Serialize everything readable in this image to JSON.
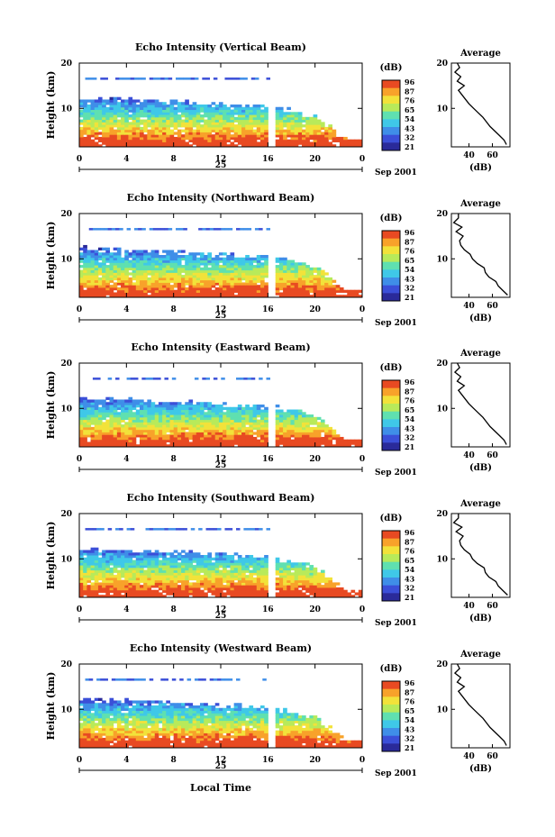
{
  "figure": {
    "date_label": "Sep 2001",
    "day_label": "25",
    "xlabel": "Local Time"
  },
  "colorbar": {
    "unit": "(dB)",
    "ticks": [
      "96",
      "87",
      "76",
      "65",
      "54",
      "43",
      "32",
      "21"
    ],
    "colors": [
      "#2a2a9a",
      "#3b4fd8",
      "#3f8ee8",
      "#3fc8e8",
      "#5fe0b0",
      "#b8ea5a",
      "#f2e23a",
      "#f8a22a",
      "#e84a22"
    ]
  },
  "chart_data": [
    {
      "type": "heatmap",
      "title": "Echo Intensity (Vertical Beam)",
      "ylabel": "Height (km)",
      "x_ticks": [
        "0",
        "4",
        "8",
        "12",
        "16",
        "20",
        "0"
      ],
      "y_ticks": [
        "20",
        "10"
      ],
      "xlim": [
        0,
        24
      ],
      "ylim": [
        1.5,
        20
      ],
      "zlim": [
        21,
        96
      ],
      "data_gap_hours": [
        16,
        16.5
      ],
      "inset": {
        "title": "Average",
        "xlabel": "(dB)",
        "x_ticks": [
          "40",
          "60"
        ],
        "y_ticks": [
          "20",
          "10"
        ],
        "xlim": [
          25,
          75
        ]
      }
    },
    {
      "type": "heatmap",
      "title": "Echo Intensity (Northward Beam)",
      "ylabel": "Height (km)",
      "x_ticks": [
        "0",
        "4",
        "8",
        "12",
        "16",
        "20",
        "0"
      ],
      "y_ticks": [
        "20",
        "10"
      ],
      "xlim": [
        0,
        24
      ],
      "ylim": [
        1.5,
        20
      ],
      "zlim": [
        21,
        96
      ],
      "data_gap_hours": [
        16,
        16.5
      ],
      "inset": {
        "title": "Average",
        "xlabel": "(dB)",
        "x_ticks": [
          "40",
          "60"
        ],
        "y_ticks": [
          "20",
          "10"
        ],
        "xlim": [
          25,
          75
        ]
      }
    },
    {
      "type": "heatmap",
      "title": "Echo Intensity (Eastward Beam)",
      "ylabel": "Height (km)",
      "x_ticks": [
        "0",
        "4",
        "8",
        "12",
        "16",
        "20",
        "0"
      ],
      "y_ticks": [
        "20",
        "10"
      ],
      "xlim": [
        0,
        24
      ],
      "ylim": [
        1.5,
        20
      ],
      "zlim": [
        21,
        96
      ],
      "data_gap_hours": [
        16,
        16.5
      ],
      "inset": {
        "title": "Average",
        "xlabel": "(dB)",
        "x_ticks": [
          "40",
          "60"
        ],
        "y_ticks": [
          "20",
          "10"
        ],
        "xlim": [
          25,
          75
        ]
      }
    },
    {
      "type": "heatmap",
      "title": "Echo Intensity (Southward Beam)",
      "ylabel": "Height (km)",
      "x_ticks": [
        "0",
        "4",
        "8",
        "12",
        "16",
        "20",
        "0"
      ],
      "y_ticks": [
        "20",
        "10"
      ],
      "xlim": [
        0,
        24
      ],
      "ylim": [
        1.5,
        20
      ],
      "zlim": [
        21,
        96
      ],
      "data_gap_hours": [
        16,
        16.5
      ],
      "inset": {
        "title": "Average",
        "xlabel": "(dB)",
        "x_ticks": [
          "40",
          "60"
        ],
        "y_ticks": [
          "20",
          "10"
        ],
        "xlim": [
          25,
          75
        ]
      }
    },
    {
      "type": "heatmap",
      "title": "Echo Intensity (Westward Beam)",
      "ylabel": "Height (km)",
      "x_ticks": [
        "0",
        "4",
        "8",
        "12",
        "16",
        "20",
        "0"
      ],
      "y_ticks": [
        "20",
        "10"
      ],
      "xlim": [
        0,
        24
      ],
      "ylim": [
        1.5,
        20
      ],
      "zlim": [
        21,
        96
      ],
      "data_gap_hours": [
        16,
        16.5
      ],
      "inset": {
        "title": "Average",
        "xlabel": "(dB)",
        "x_ticks": [
          "40",
          "60"
        ],
        "y_ticks": [
          "20",
          "10"
        ],
        "xlim": [
          25,
          75
        ]
      }
    }
  ],
  "avg_profile": {
    "heights_km": [
      2,
      3,
      4,
      5,
      6,
      7,
      8,
      9,
      10,
      11,
      12,
      13,
      14,
      15,
      16,
      17,
      18,
      19,
      20
    ],
    "avg_db": [
      72,
      70,
      66,
      62,
      58,
      55,
      52,
      48,
      44,
      40,
      37,
      34,
      31,
      36,
      30,
      33,
      28,
      32,
      30
    ]
  }
}
